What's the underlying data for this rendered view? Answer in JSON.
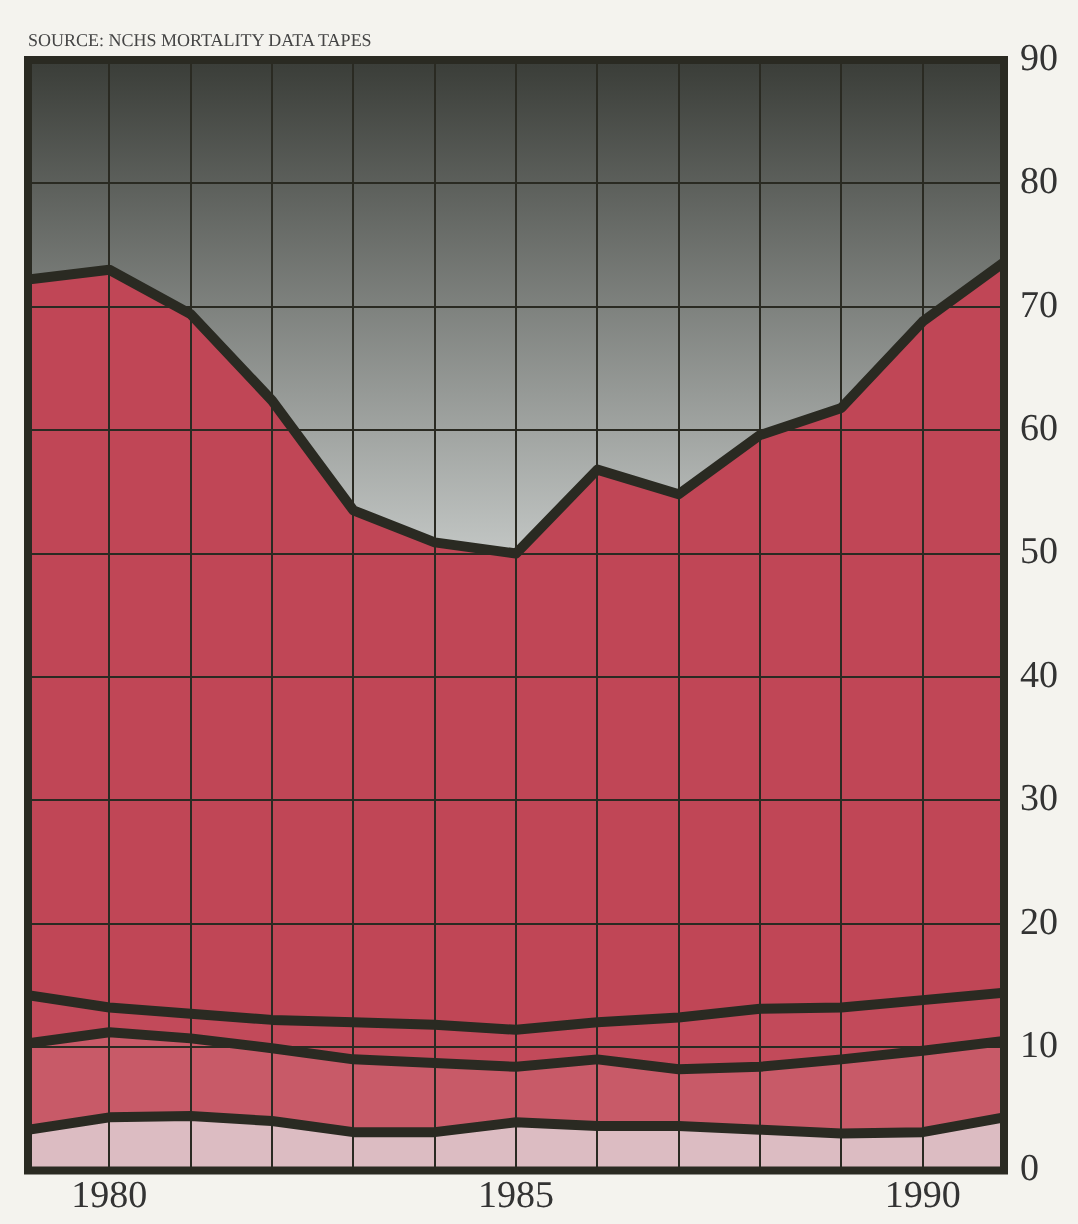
{
  "chart_data": {
    "type": "area",
    "annotations": [
      "SOURCE: NCHS MORTALITY DATA TAPES"
    ],
    "x": [
      1979,
      1980,
      1981,
      1982,
      1983,
      1984,
      1985,
      1986,
      1987,
      1988,
      1989,
      1990,
      1991
    ],
    "series": [
      {
        "color": "#c04656",
        "values": [
          72.2,
          73.0,
          69.4,
          62.4,
          53.5,
          50.9,
          50.0,
          56.8,
          54.8,
          59.6,
          61.8,
          68.8,
          73.6
        ]
      },
      {
        "color": "#c24a5a",
        "values": [
          14.2,
          13.2,
          12.7,
          12.2,
          12.0,
          11.8,
          11.4,
          12.0,
          12.4,
          13.1,
          13.2,
          13.8,
          14.4
        ]
      },
      {
        "color": "#c85a68",
        "values": [
          10.3,
          11.2,
          10.7,
          9.9,
          9.0,
          8.7,
          8.4,
          9.0,
          8.2,
          8.4,
          9.0,
          9.7,
          10.5
        ]
      },
      {
        "color": "#dcbcc2",
        "values": [
          3.3,
          4.3,
          4.4,
          4.0,
          3.1,
          3.1,
          3.9,
          3.6,
          3.6,
          3.3,
          3.0,
          3.1,
          4.3
        ]
      }
    ],
    "xlim": [
      1979,
      1991
    ],
    "xticks": [
      {
        "value": 1979,
        "label": null
      },
      1980,
      {
        "value": 1981,
        "label": null
      },
      {
        "value": 1982,
        "label": null
      },
      {
        "value": 1983,
        "label": null
      },
      {
        "value": 1984,
        "label": null
      },
      1985,
      {
        "value": 1986,
        "label": null
      },
      {
        "value": 1987,
        "label": null
      },
      {
        "value": 1988,
        "label": null
      },
      {
        "value": 1989,
        "label": null
      },
      1990,
      {
        "value": 1991,
        "label": null
      }
    ],
    "ylim": [
      0,
      90
    ],
    "yticks": [
      0,
      10,
      20,
      30,
      40,
      50,
      60,
      70,
      80,
      90
    ],
    "grid": true,
    "marker": "none",
    "line_style": "solid",
    "legend": false
  }
}
